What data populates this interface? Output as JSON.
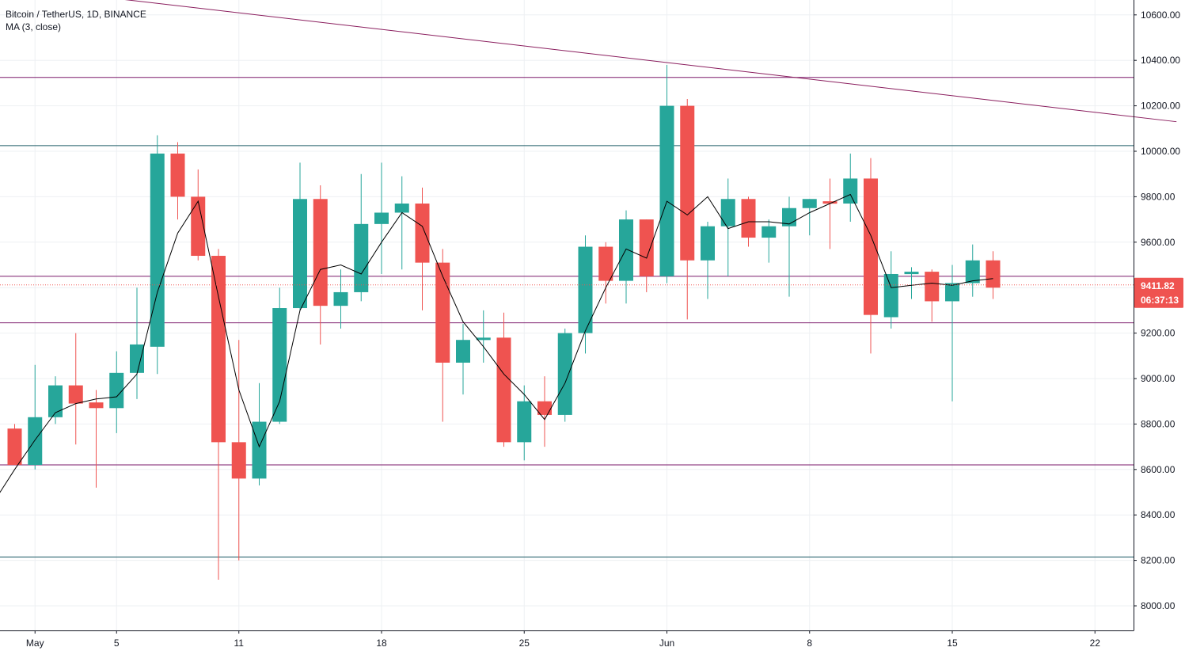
{
  "header": {
    "symbol_title": "Bitcoin / TetherUS, 1D, BINANCE",
    "indicator_label": "MA (3, close)"
  },
  "price_tag": {
    "price": "9411.82",
    "countdown": "06:37:13"
  },
  "colors": {
    "up": "#26a69a",
    "down": "#ef5350",
    "ma": "#000000",
    "purple_line": "#7b1a6b",
    "teal_line": "#1e5c66",
    "trend_line": "#8a1e5e",
    "grid": "#eef0f3",
    "axis_text": "#131722"
  },
  "chart_data": {
    "type": "candlestick",
    "title": "Bitcoin / TetherUS, 1D, BINANCE",
    "indicator": "MA (3, close)",
    "ylim": [
      7850,
      10720
    ],
    "y_ticks": [
      8000,
      8200,
      8400,
      8600,
      8800,
      9000,
      9200,
      9400,
      9600,
      9800,
      10000,
      10200,
      10400,
      10600
    ],
    "x_ticks": [
      {
        "label": "May",
        "day": 1
      },
      {
        "label": "5",
        "day": 5
      },
      {
        "label": "11",
        "day": 11
      },
      {
        "label": "18",
        "day": 18
      },
      {
        "label": "25",
        "day": 25
      },
      {
        "label": "Jun",
        "day": 32
      },
      {
        "label": "8",
        "day": 39
      },
      {
        "label": "15",
        "day": 46
      },
      {
        "label": "22",
        "day": 53
      }
    ],
    "candles": [
      {
        "day": 0,
        "open": 8780,
        "high": 8800,
        "low": 8620,
        "close": 8620
      },
      {
        "day": 1,
        "open": 8620,
        "high": 9060,
        "low": 8600,
        "close": 8830
      },
      {
        "day": 2,
        "open": 8830,
        "high": 9010,
        "low": 8800,
        "close": 8970
      },
      {
        "day": 3,
        "open": 8970,
        "high": 9200,
        "low": 8710,
        "close": 8890
      },
      {
        "day": 4,
        "open": 8895,
        "high": 8950,
        "low": 8520,
        "close": 8870
      },
      {
        "day": 5,
        "open": 8870,
        "high": 9120,
        "low": 8760,
        "close": 9025
      },
      {
        "day": 6,
        "open": 9025,
        "high": 9400,
        "low": 8910,
        "close": 9150
      },
      {
        "day": 7,
        "open": 9140,
        "high": 10070,
        "low": 9020,
        "close": 9990
      },
      {
        "day": 8,
        "open": 9990,
        "high": 10040,
        "low": 9700,
        "close": 9800
      },
      {
        "day": 9,
        "open": 9800,
        "high": 9920,
        "low": 9520,
        "close": 9540
      },
      {
        "day": 10,
        "open": 9540,
        "high": 9570,
        "low": 8115,
        "close": 8720
      },
      {
        "day": 11,
        "open": 8720,
        "high": 9170,
        "low": 8200,
        "close": 8560
      },
      {
        "day": 12,
        "open": 8560,
        "high": 8980,
        "low": 8530,
        "close": 8810
      },
      {
        "day": 13,
        "open": 8810,
        "high": 9400,
        "low": 8800,
        "close": 9310
      },
      {
        "day": 14,
        "open": 9310,
        "high": 9950,
        "low": 9300,
        "close": 9790
      },
      {
        "day": 15,
        "open": 9790,
        "high": 9850,
        "low": 9150,
        "close": 9320
      },
      {
        "day": 16,
        "open": 9320,
        "high": 9480,
        "low": 9220,
        "close": 9380
      },
      {
        "day": 17,
        "open": 9380,
        "high": 9900,
        "low": 9340,
        "close": 9680
      },
      {
        "day": 18,
        "open": 9680,
        "high": 9950,
        "low": 9460,
        "close": 9730
      },
      {
        "day": 19,
        "open": 9730,
        "high": 9890,
        "low": 9480,
        "close": 9770
      },
      {
        "day": 20,
        "open": 9770,
        "high": 9840,
        "low": 9300,
        "close": 9510
      },
      {
        "day": 21,
        "open": 9510,
        "high": 9570,
        "low": 8810,
        "close": 9070
      },
      {
        "day": 22,
        "open": 9070,
        "high": 9240,
        "low": 8930,
        "close": 9170
      },
      {
        "day": 23,
        "open": 9170,
        "high": 9300,
        "low": 9070,
        "close": 9180
      },
      {
        "day": 24,
        "open": 9180,
        "high": 9290,
        "low": 8700,
        "close": 8720
      },
      {
        "day": 25,
        "open": 8720,
        "high": 8970,
        "low": 8640,
        "close": 8900
      },
      {
        "day": 26,
        "open": 8900,
        "high": 9010,
        "low": 8700,
        "close": 8840
      },
      {
        "day": 27,
        "open": 8840,
        "high": 9220,
        "low": 8810,
        "close": 9200
      },
      {
        "day": 28,
        "open": 9200,
        "high": 9630,
        "low": 9110,
        "close": 9580
      },
      {
        "day": 29,
        "open": 9580,
        "high": 9600,
        "low": 9330,
        "close": 9430
      },
      {
        "day": 30,
        "open": 9430,
        "high": 9740,
        "low": 9330,
        "close": 9700
      },
      {
        "day": 31,
        "open": 9700,
        "high": 9700,
        "low": 9380,
        "close": 9450
      },
      {
        "day": 32,
        "open": 9450,
        "high": 10380,
        "low": 9420,
        "close": 10200
      },
      {
        "day": 33,
        "open": 10200,
        "high": 10230,
        "low": 9260,
        "close": 9520
      },
      {
        "day": 34,
        "open": 9520,
        "high": 9690,
        "low": 9350,
        "close": 9670
      },
      {
        "day": 35,
        "open": 9670,
        "high": 9880,
        "low": 9450,
        "close": 9790
      },
      {
        "day": 36,
        "open": 9790,
        "high": 9800,
        "low": 9580,
        "close": 9620
      },
      {
        "day": 37,
        "open": 9620,
        "high": 9700,
        "low": 9510,
        "close": 9670
      },
      {
        "day": 38,
        "open": 9670,
        "high": 9800,
        "low": 9360,
        "close": 9750
      },
      {
        "day": 39,
        "open": 9750,
        "high": 9790,
        "low": 9630,
        "close": 9790
      },
      {
        "day": 40,
        "open": 9780,
        "high": 9880,
        "low": 9570,
        "close": 9770
      },
      {
        "day": 41,
        "open": 9770,
        "high": 9990,
        "low": 9690,
        "close": 9880
      },
      {
        "day": 42,
        "open": 9880,
        "high": 9970,
        "low": 9110,
        "close": 9280
      },
      {
        "day": 43,
        "open": 9270,
        "high": 9560,
        "low": 9220,
        "close": 9460
      },
      {
        "day": 44,
        "open": 9460,
        "high": 9490,
        "low": 9350,
        "close": 9470
      },
      {
        "day": 45,
        "open": 9470,
        "high": 9480,
        "low": 9250,
        "close": 9340
      },
      {
        "day": 46,
        "open": 9340,
        "high": 9500,
        "low": 8900,
        "close": 9420
      },
      {
        "day": 47,
        "open": 9420,
        "high": 9590,
        "low": 9360,
        "close": 9520
      },
      {
        "day": 48,
        "open": 9520,
        "high": 9560,
        "low": 9350,
        "close": 9400
      }
    ],
    "ma_values": [
      {
        "day": -1,
        "value": 8460
      },
      {
        "day": 0,
        "value": 8600
      },
      {
        "day": 1,
        "value": 8730
      },
      {
        "day": 2,
        "value": 8850
      },
      {
        "day": 3,
        "value": 8890
      },
      {
        "day": 4,
        "value": 8910
      },
      {
        "day": 5,
        "value": 8920
      },
      {
        "day": 6,
        "value": 9020
      },
      {
        "day": 7,
        "value": 9380
      },
      {
        "day": 8,
        "value": 9640
      },
      {
        "day": 9,
        "value": 9780
      },
      {
        "day": 10,
        "value": 9360
      },
      {
        "day": 11,
        "value": 8950
      },
      {
        "day": 12,
        "value": 8700
      },
      {
        "day": 13,
        "value": 8900
      },
      {
        "day": 14,
        "value": 9300
      },
      {
        "day": 15,
        "value": 9480
      },
      {
        "day": 16,
        "value": 9500
      },
      {
        "day": 17,
        "value": 9460
      },
      {
        "day": 18,
        "value": 9600
      },
      {
        "day": 19,
        "value": 9730
      },
      {
        "day": 20,
        "value": 9670
      },
      {
        "day": 21,
        "value": 9450
      },
      {
        "day": 22,
        "value": 9250
      },
      {
        "day": 23,
        "value": 9140
      },
      {
        "day": 24,
        "value": 9020
      },
      {
        "day": 25,
        "value": 8930
      },
      {
        "day": 26,
        "value": 8820
      },
      {
        "day": 27,
        "value": 8980
      },
      {
        "day": 28,
        "value": 9210
      },
      {
        "day": 29,
        "value": 9400
      },
      {
        "day": 30,
        "value": 9570
      },
      {
        "day": 31,
        "value": 9530
      },
      {
        "day": 32,
        "value": 9780
      },
      {
        "day": 33,
        "value": 9720
      },
      {
        "day": 34,
        "value": 9800
      },
      {
        "day": 35,
        "value": 9660
      },
      {
        "day": 36,
        "value": 9690
      },
      {
        "day": 37,
        "value": 9690
      },
      {
        "day": 38,
        "value": 9680
      },
      {
        "day": 39,
        "value": 9730
      },
      {
        "day": 40,
        "value": 9770
      },
      {
        "day": 41,
        "value": 9810
      },
      {
        "day": 42,
        "value": 9630
      },
      {
        "day": 43,
        "value": 9400
      },
      {
        "day": 44,
        "value": 9410
      },
      {
        "day": 45,
        "value": 9420
      },
      {
        "day": 46,
        "value": 9410
      },
      {
        "day": 47,
        "value": 9430
      },
      {
        "day": 48,
        "value": 9440
      }
    ],
    "horizontal_lines": [
      {
        "price": 10325,
        "kind": "purple"
      },
      {
        "price": 10025,
        "kind": "teal"
      },
      {
        "price": 9450,
        "kind": "purple"
      },
      {
        "price": 9245,
        "kind": "purple"
      },
      {
        "price": 8620,
        "kind": "purple"
      },
      {
        "price": 8215,
        "kind": "teal"
      }
    ],
    "trend_line": {
      "from": {
        "day": 1.3,
        "price": 10710
      },
      "to": {
        "day": 57,
        "price": 10130
      }
    },
    "last_price": 9411.82,
    "grid": true
  }
}
